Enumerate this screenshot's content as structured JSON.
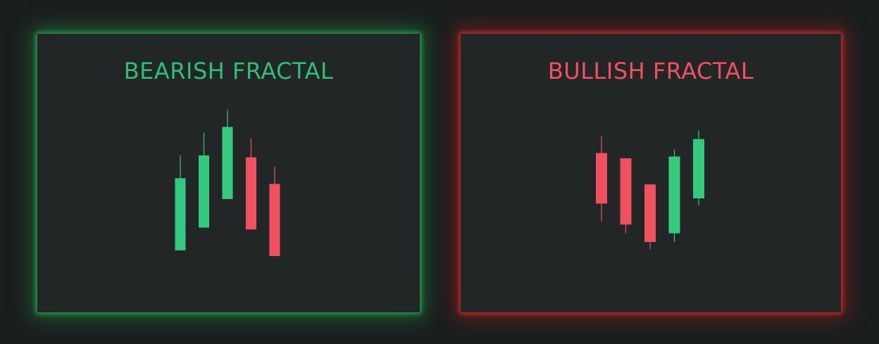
{
  "colors": {
    "up": "#35c97e",
    "down": "#f0505f",
    "background": "#1b1e1f",
    "panel": "#222626"
  },
  "panels": [
    {
      "title": "BEARISH FRACTAL",
      "title_color": "#2fbf72",
      "glow": "green"
    },
    {
      "title": "BULLISH FRACTAL",
      "title_color": "#f0505f",
      "glow": "red"
    }
  ],
  "chart_data": [
    {
      "type": "candlestick",
      "title": "BEARISH FRACTAL",
      "grid": false,
      "ylim": [
        0,
        100
      ],
      "candles": [
        {
          "open": 23,
          "close": 61,
          "high": 73,
          "low": 23,
          "direction": "up"
        },
        {
          "open": 35,
          "close": 73,
          "high": 85,
          "low": 35,
          "direction": "up"
        },
        {
          "open": 50,
          "close": 88,
          "high": 97,
          "low": 50,
          "direction": "up"
        },
        {
          "open": 72,
          "close": 34,
          "high": 82,
          "low": 34,
          "direction": "down"
        },
        {
          "open": 58,
          "close": 20,
          "high": 67,
          "low": 20,
          "direction": "down"
        }
      ]
    },
    {
      "type": "candlestick",
      "title": "BULLISH FRACTAL",
      "grid": false,
      "ylim": [
        0,
        100
      ],
      "candles": [
        {
          "open": 76,
          "close": 47,
          "high": 86,
          "low": 37,
          "direction": "down"
        },
        {
          "open": 73,
          "close": 35,
          "high": 73,
          "low": 30,
          "direction": "down"
        },
        {
          "open": 58,
          "close": 25,
          "high": 58,
          "low": 21,
          "direction": "down"
        },
        {
          "open": 30,
          "close": 74,
          "high": 78,
          "low": 25,
          "direction": "up"
        },
        {
          "open": 50,
          "close": 84,
          "high": 89,
          "low": 46,
          "direction": "up"
        }
      ]
    }
  ]
}
